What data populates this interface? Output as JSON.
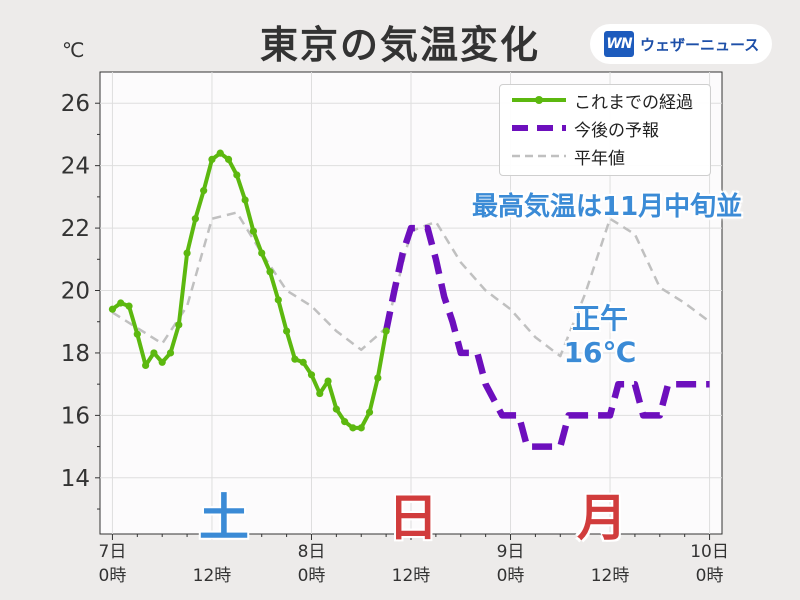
{
  "header": {
    "title": "東京の気温変化",
    "logo_mark": "WN",
    "logo_text": "ウェザーニュース",
    "unit": "℃"
  },
  "legend": [
    {
      "label": "これまでの経過",
      "color": "#5cb80f",
      "style": "solid-markers"
    },
    {
      "label": "今後の予報",
      "color": "#6d0fbd",
      "style": "dashed"
    },
    {
      "label": "平年値",
      "color": "#c0c0c0",
      "style": "dashed"
    }
  ],
  "annotations": {
    "max_temp": "最高気温は11月中旬並",
    "noon_line1": "正午",
    "noon_line2": "16℃"
  },
  "days": [
    {
      "label": "土",
      "color": "#3b8bd6"
    },
    {
      "label": "日",
      "color": "#d13c3c"
    },
    {
      "label": "月",
      "color": "#d13c3c"
    }
  ],
  "chart_data": {
    "type": "line",
    "title": "東京の気温変化",
    "ylabel": "℃",
    "ylim": [
      12.2,
      27.0
    ],
    "xlim": [
      -1.5,
      73.5
    ],
    "yticks": [
      14,
      16,
      18,
      20,
      22,
      24,
      26
    ],
    "xticks": [
      {
        "x": 0,
        "line1": "7日",
        "line2": "0時"
      },
      {
        "x": 12,
        "line1": "",
        "line2": "12時"
      },
      {
        "x": 24,
        "line1": "8日",
        "line2": "0時"
      },
      {
        "x": 36,
        "line1": "",
        "line2": "12時"
      },
      {
        "x": 48,
        "line1": "9日",
        "line2": "0時"
      },
      {
        "x": 60,
        "line1": "",
        "line2": "12時"
      },
      {
        "x": 72,
        "line1": "10日",
        "line2": "0時"
      }
    ],
    "grid": true,
    "legend_position": "top-right",
    "series": [
      {
        "name": "これまでの経過",
        "x": [
          0,
          1,
          2,
          3,
          4,
          5,
          6,
          7,
          8,
          9,
          10,
          11,
          12,
          13,
          14,
          15,
          16,
          17,
          18,
          19,
          20,
          21,
          22,
          23,
          24,
          25,
          26,
          27,
          28,
          29,
          30,
          31,
          32,
          33
        ],
        "values": [
          19.4,
          19.6,
          19.5,
          18.6,
          17.6,
          18.0,
          17.7,
          18.0,
          18.9,
          21.2,
          22.3,
          23.2,
          24.2,
          24.4,
          24.2,
          23.7,
          22.9,
          21.9,
          21.2,
          20.6,
          19.7,
          18.7,
          17.8,
          17.7,
          17.3,
          16.7,
          17.1,
          16.2,
          15.8,
          15.6,
          15.6,
          16.1,
          17.2,
          18.7
        ]
      },
      {
        "name": "今後の予報",
        "x": [
          33,
          34,
          35,
          36,
          37,
          38,
          39,
          40,
          41,
          42,
          43,
          44,
          45,
          46,
          47,
          48,
          49,
          50,
          51,
          52,
          53,
          54,
          55,
          56,
          57,
          58,
          59,
          60,
          61,
          62,
          63,
          64,
          65,
          66,
          67,
          68,
          69,
          70,
          71,
          72
        ],
        "values": [
          18.7,
          20.0,
          21.2,
          22.0,
          22.0,
          22.0,
          21.0,
          19.8,
          19.0,
          18.0,
          18.0,
          18.0,
          17.0,
          16.5,
          16.0,
          16.0,
          16.0,
          15.0,
          15.0,
          15.0,
          15.0,
          15.0,
          16.0,
          16.0,
          16.0,
          16.0,
          16.0,
          16.0,
          17.0,
          17.0,
          17.0,
          16.0,
          16.0,
          16.0,
          17.0,
          17.0,
          17.0,
          17.0,
          17.0,
          17.0
        ]
      },
      {
        "name": "平年値",
        "x": [
          0,
          3,
          6,
          9,
          12,
          15,
          18,
          21,
          24,
          27,
          30,
          33,
          36,
          39,
          42,
          45,
          48,
          51,
          54,
          57,
          60,
          63,
          66,
          69,
          72
        ],
        "values": [
          19.3,
          18.8,
          18.3,
          19.5,
          22.3,
          22.5,
          21.2,
          20.0,
          19.5,
          18.7,
          18.1,
          18.8,
          21.9,
          22.2,
          20.9,
          20.0,
          19.4,
          18.5,
          17.9,
          19.9,
          22.3,
          21.8,
          20.1,
          19.6,
          19.0
        ]
      }
    ]
  }
}
